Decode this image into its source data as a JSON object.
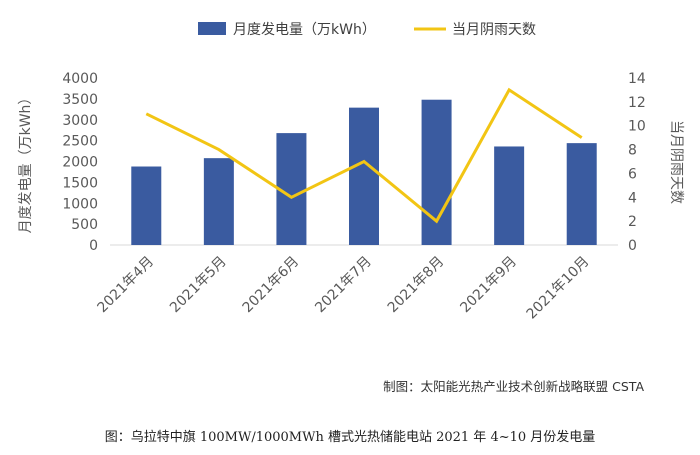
{
  "source_note": "制图：太阳能光热产业技术创新战略联盟 CSTA",
  "caption": "图：乌拉特中旗 100MW/1000MWh 槽式光热储能电站 2021 年 4~10 月份发电量",
  "colors": {
    "bar": "#3a5ba0",
    "line": "#f2c514",
    "axis_text": "#595959",
    "grid_axis": "#d9d9d9"
  },
  "chart_data": {
    "type": "bar",
    "title": "",
    "categories": [
      "2021年4月",
      "2021年5月",
      "2021年6月",
      "2021年7月",
      "2021年8月",
      "2021年9月",
      "2021年10月"
    ],
    "series": [
      {
        "name": "月度发电量（万kWh）",
        "type": "bar",
        "axis": "left",
        "values": [
          1880,
          2080,
          2680,
          3290,
          3480,
          2360,
          2440
        ]
      },
      {
        "name": "当月阴雨天数",
        "type": "line",
        "axis": "right",
        "values": [
          11,
          8,
          4,
          7,
          2,
          13,
          9
        ]
      }
    ],
    "ylabel": "月度发电量（万kWh）",
    "ylabel_right": "当月阴雨天数",
    "ylim": [
      0,
      4000
    ],
    "ylim_right": [
      0,
      14
    ],
    "yticks": [
      "0",
      "500",
      "1000",
      "1500",
      "2000",
      "2500",
      "3000",
      "3500",
      "4000"
    ],
    "yticks_right": [
      "0",
      "2",
      "4",
      "6",
      "8",
      "10",
      "12",
      "14"
    ],
    "grid": false,
    "legend_position": "top"
  }
}
